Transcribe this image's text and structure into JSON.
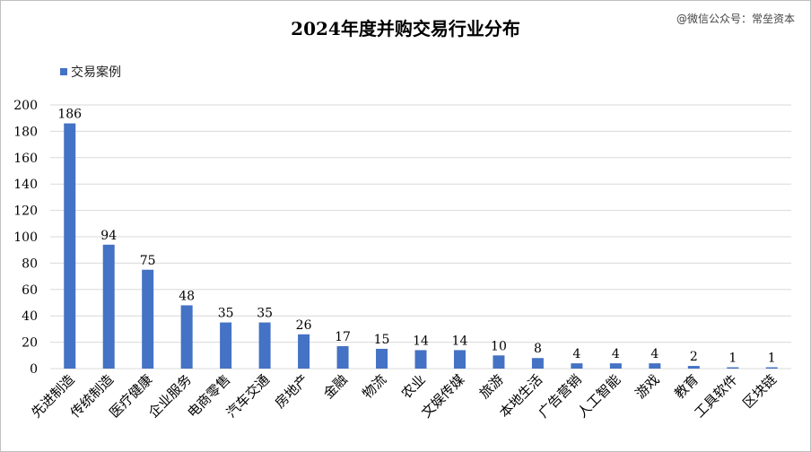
{
  "watermark": "@微信公众号：常垒资本",
  "chart_data": {
    "type": "bar",
    "title": "2024年度并购交易行业分布",
    "legend_position": "top-left",
    "grid": true,
    "ylim": [
      0,
      200
    ],
    "yticks": [
      0,
      20,
      40,
      60,
      80,
      100,
      120,
      140,
      160,
      180,
      200
    ],
    "categories": [
      "先进制造",
      "传统制造",
      "医疗健康",
      "企业服务",
      "电商零售",
      "汽车交通",
      "房地产",
      "金融",
      "物流",
      "农业",
      "文娱传媒",
      "旅游",
      "本地生活",
      "广告营销",
      "人工智能",
      "游戏",
      "教育",
      "工具软件",
      "区块链"
    ],
    "series": [
      {
        "name": "交易案例",
        "color": "#4472C4",
        "values": [
          186,
          94,
          75,
          48,
          35,
          35,
          26,
          17,
          15,
          14,
          14,
          10,
          8,
          4,
          4,
          4,
          2,
          1,
          1
        ]
      }
    ]
  }
}
